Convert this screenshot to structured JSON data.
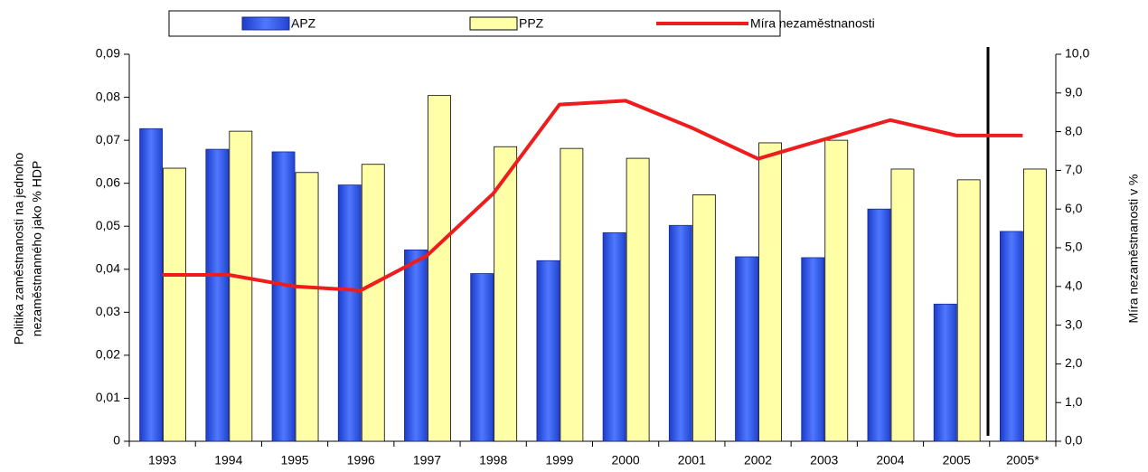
{
  "chart_data": {
    "type": "bar",
    "categories": [
      "1993",
      "1994",
      "1995",
      "1996",
      "1997",
      "1998",
      "1999",
      "2000",
      "2001",
      "2002",
      "2003",
      "2004",
      "2005",
      "2005*"
    ],
    "series": [
      {
        "name": "APZ",
        "type": "bar",
        "color": "#3a5ee8",
        "values": [
          0.0727,
          0.0679,
          0.0673,
          0.0596,
          0.0445,
          0.039,
          0.042,
          0.0485,
          0.0502,
          0.0429,
          0.0427,
          0.054,
          0.0319,
          0.0488
        ]
      },
      {
        "name": "PPZ",
        "type": "bar",
        "color": "#ffffa8",
        "values": [
          0.0635,
          0.0721,
          0.0625,
          0.0644,
          0.0804,
          0.0685,
          0.0681,
          0.0658,
          0.0573,
          0.0694,
          0.07,
          0.0633,
          0.0608,
          0.0633
        ]
      },
      {
        "name": "Míra nezaměstnanosti",
        "type": "line",
        "axis": "y2",
        "color": "#ee1c1c",
        "values": [
          4.3,
          4.3,
          4.0,
          3.9,
          4.8,
          6.4,
          8.7,
          8.8,
          8.1,
          7.3,
          7.8,
          8.3,
          7.9,
          7.9
        ]
      }
    ],
    "y_label": [
      "Politika zaměstnanosti na jednoho",
      "nezaměstnanného jako % HDP"
    ],
    "y2_label": "Míra nezaměstnanosti v %",
    "ylim": [
      0,
      0.09
    ],
    "yticks": [
      {
        "value": 0,
        "label": "0"
      },
      {
        "value": 0.01,
        "label": "0,01"
      },
      {
        "value": 0.02,
        "label": "0,02"
      },
      {
        "value": 0.03,
        "label": "0,03"
      },
      {
        "value": 0.04,
        "label": "0,04"
      },
      {
        "value": 0.05,
        "label": "0,05"
      },
      {
        "value": 0.06,
        "label": "0,06"
      },
      {
        "value": 0.07,
        "label": "0,07"
      },
      {
        "value": 0.08,
        "label": "0,08"
      },
      {
        "value": 0.09,
        "label": "0,09"
      }
    ],
    "y2lim": [
      0,
      10
    ],
    "y2ticks": [
      {
        "value": 0,
        "label": "0,0"
      },
      {
        "value": 1,
        "label": "1,0"
      },
      {
        "value": 2,
        "label": "2,0"
      },
      {
        "value": 3,
        "label": "3,0"
      },
      {
        "value": 4,
        "label": "4,0"
      },
      {
        "value": 5,
        "label": "5,0"
      },
      {
        "value": 6,
        "label": "6,0"
      },
      {
        "value": 7,
        "label": "7,0"
      },
      {
        "value": 8,
        "label": "8,0"
      },
      {
        "value": 9,
        "label": "9,0"
      },
      {
        "value": 10,
        "label": "10,0"
      }
    ],
    "legend": "top"
  }
}
